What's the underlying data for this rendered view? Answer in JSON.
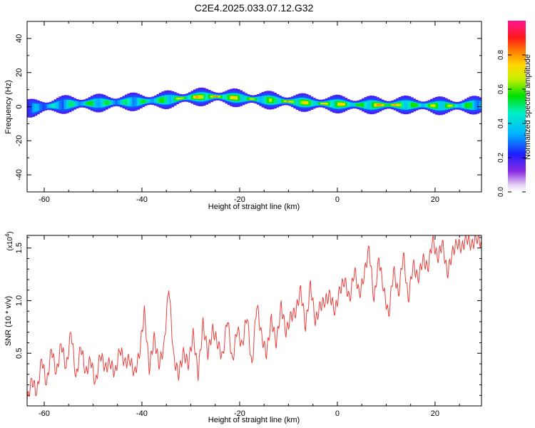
{
  "title": "C2E4.2025.033.07.12.G32",
  "colors": {
    "snr_line": "#e8413c",
    "axis": "#000000"
  },
  "chart_data": [
    {
      "type": "heatmap",
      "xlabel": "Height of straight line (km)",
      "ylabel": "Frequency (Hz)",
      "xlim": [
        -63.5,
        29.5
      ],
      "ylim": [
        -50,
        50
      ],
      "xticks": [
        -60,
        -40,
        -20,
        0,
        20
      ],
      "xtick_labels": [
        "-60",
        "-40",
        "-20",
        "0",
        "20"
      ],
      "yticks": [
        -40,
        -20,
        0,
        20,
        40
      ],
      "ytick_labels": [
        "-40",
        "-20",
        "0",
        "20",
        "40"
      ],
      "colorbar": {
        "label": "Normalized spectral amplitude",
        "range": [
          0,
          1
        ],
        "ticks": [
          0.0,
          0.2,
          0.4,
          0.6,
          0.8
        ],
        "tick_labels": [
          "0.0",
          "0.2",
          "0.4",
          "0.6",
          "0.8"
        ],
        "colormap": "rainbow (white-violet-blue-cyan-green-yellow-orange-red-magenta)"
      },
      "ridge": {
        "description": "dominant spectral ridge (center frequency vs height)",
        "x": [
          -63,
          -60,
          -55,
          -50,
          -45,
          -40,
          -35,
          -30,
          -25,
          -20,
          -15,
          -10,
          -5,
          0,
          5,
          10,
          15,
          20,
          25,
          29
        ],
        "center_hz": [
          -1,
          0,
          1.5,
          2,
          2.5,
          3,
          4,
          5.5,
          6,
          5,
          4,
          3,
          2,
          1.5,
          1,
          1,
          1,
          0.5,
          0.5,
          1
        ],
        "peak_amplitude": [
          0.3,
          0.45,
          0.5,
          0.6,
          0.5,
          0.55,
          0.6,
          0.8,
          0.85,
          0.75,
          0.6,
          0.85,
          0.7,
          0.8,
          0.6,
          0.95,
          0.6,
          0.7,
          0.65,
          0.5
        ]
      }
    },
    {
      "type": "line",
      "xlabel": "Height of straight line (km)",
      "ylabel": "SNR (10 * v/v)",
      "yscale_label": "(x10",
      "yscale_exp": "4",
      "yscale_close": ")",
      "xlim": [
        -63.5,
        29.5
      ],
      "ylim": [
        0,
        1.62
      ],
      "xticks": [
        -60,
        -40,
        -20,
        0,
        20
      ],
      "xtick_labels": [
        "-60",
        "-40",
        "-20",
        "0",
        "20"
      ],
      "yticks": [
        0.5,
        1.0,
        1.5
      ],
      "ytick_labels": [
        "0.5",
        "1.0",
        "1.5"
      ],
      "series": [
        {
          "x": [
            -63.5,
            -62.5,
            -61.5,
            -60.5,
            -59.5,
            -58.5,
            -57.5,
            -56.5,
            -55.5,
            -54.5,
            -53.5,
            -52.5,
            -51.5,
            -50.5,
            -49.5,
            -48.5,
            -47.5,
            -46.5,
            -45.5,
            -44.5,
            -43.5,
            -42.5,
            -41.5,
            -40.5,
            -39.5,
            -38.5,
            -37.5,
            -36.5,
            -35.5,
            -34.5,
            -33.5,
            -32.5,
            -31.5,
            -30.5,
            -29.5,
            -28.5,
            -27.5,
            -26.5,
            -25.5,
            -24.5,
            -23.5,
            -22.5,
            -21.5,
            -20.5,
            -19.5,
            -18.5,
            -17.5,
            -16.5,
            -15.5,
            -14.5,
            -13.5,
            -12.5,
            -11.5,
            -10.5,
            -9.5,
            -8.5,
            -7.5,
            -6.5,
            -5.5,
            -4.5,
            -3.5,
            -2.5,
            -1.5,
            -0.5,
            0.5,
            1.5,
            2.5,
            3.5,
            4.5,
            5.5,
            6.5,
            7.5,
            8.5,
            9.5,
            10.5,
            11.5,
            12.5,
            13.5,
            14.5,
            15.5,
            16.5,
            17.5,
            18.5,
            19.5,
            20.5,
            21.5,
            22.5,
            23.5,
            24.5,
            25.5,
            26.5,
            27.5,
            28.5,
            29.5
          ],
          "values": [
            0.05,
            0.25,
            0.12,
            0.45,
            0.2,
            0.55,
            0.3,
            0.6,
            0.35,
            0.72,
            0.25,
            0.58,
            0.3,
            0.45,
            0.2,
            0.5,
            0.35,
            0.42,
            0.3,
            0.55,
            0.4,
            0.45,
            0.3,
            0.5,
            0.9,
            0.35,
            0.65,
            0.4,
            0.55,
            1.15,
            0.45,
            0.3,
            0.5,
            0.4,
            0.68,
            0.3,
            0.78,
            0.5,
            0.72,
            0.6,
            0.45,
            0.85,
            0.4,
            0.75,
            0.55,
            0.88,
            0.35,
            0.98,
            0.65,
            0.5,
            0.82,
            0.6,
            0.95,
            0.7,
            0.85,
            0.9,
            1.1,
            0.75,
            1.15,
            0.8,
            0.95,
            1.0,
            1.05,
            0.9,
            1.1,
            1.2,
            1.0,
            1.3,
            1.05,
            1.25,
            1.5,
            1.0,
            1.4,
            1.1,
            0.85,
            1.3,
            1.05,
            1.45,
            1.0,
            1.35,
            1.2,
            1.4,
            1.3,
            1.58,
            1.4,
            1.55,
            1.25,
            1.45,
            1.55,
            1.5,
            1.6,
            1.52,
            1.6,
            1.55
          ]
        }
      ]
    }
  ]
}
